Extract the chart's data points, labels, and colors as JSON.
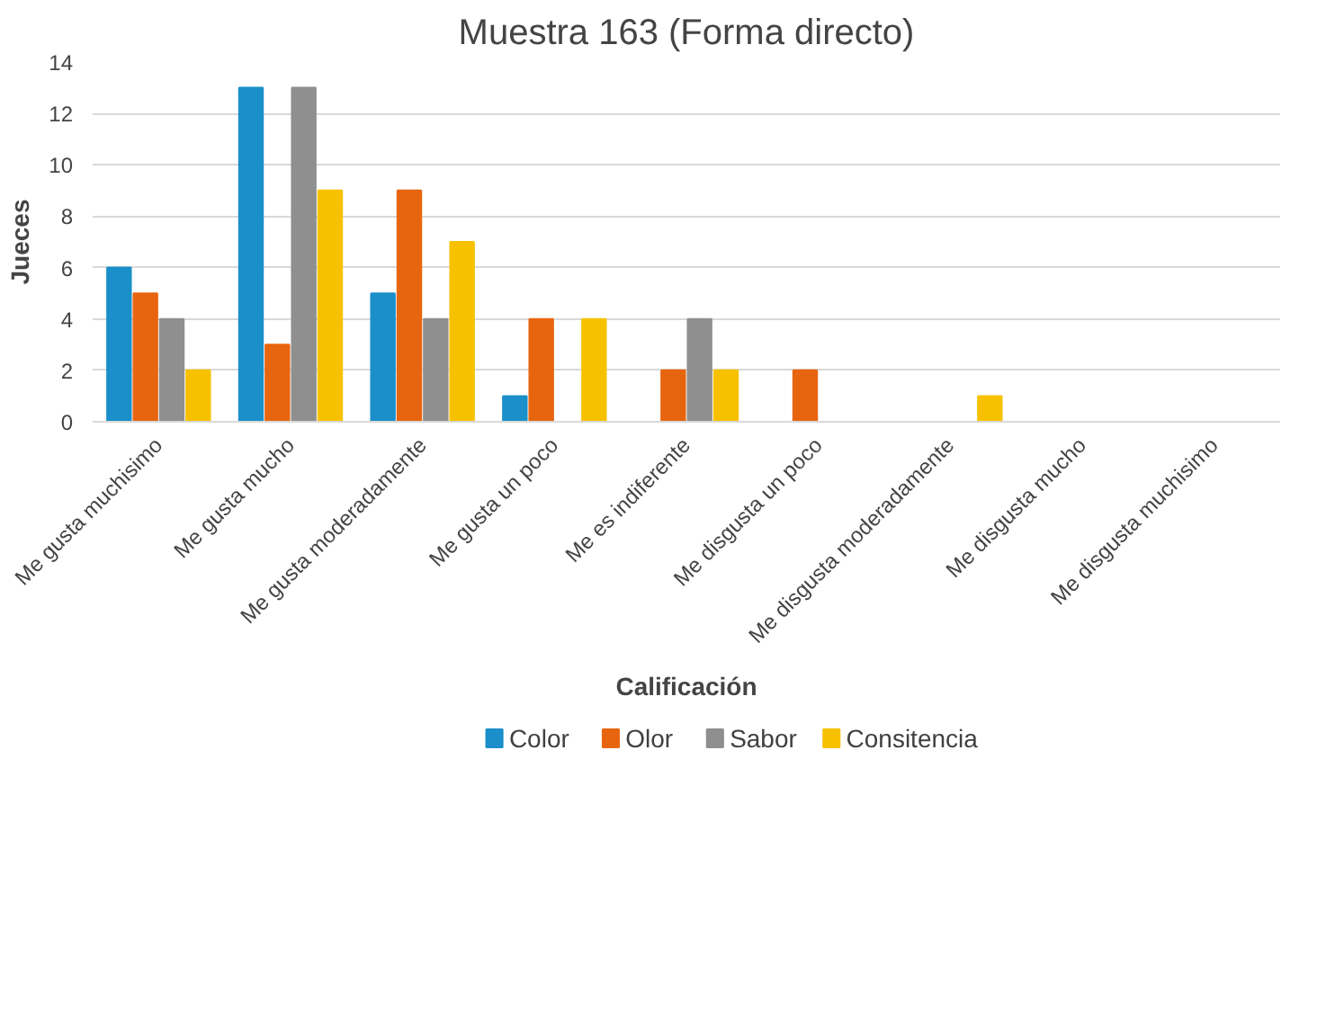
{
  "chart_data": {
    "type": "bar",
    "title": "Muestra 163 (Forma directo)",
    "xlabel": "Calificación",
    "ylabel": "Jueces",
    "categories": [
      "Me gusta muchisimo",
      "Me gusta mucho",
      "Me gusta moderadamente",
      "Me gusta un poco",
      "Me es indiferente",
      "Me disgusta un poco",
      "Me disgusta moderadamente",
      "Me disgusta mucho",
      "Me disgusta muchisimo"
    ],
    "series": [
      {
        "name": "Color",
        "color": "#1a8fc9",
        "values": [
          6,
          13,
          5,
          1,
          0,
          0,
          0,
          0,
          0
        ]
      },
      {
        "name": "Olor",
        "color": "#e8650f",
        "values": [
          5,
          3,
          9,
          4,
          2,
          2,
          0,
          0,
          0
        ]
      },
      {
        "name": "Sabor",
        "color": "#8f8f8f",
        "values": [
          4,
          13,
          4,
          0,
          4,
          0,
          0,
          0,
          0
        ]
      },
      {
        "name": "Consitencia",
        "color": "#f7c100",
        "values": [
          2,
          9,
          7,
          4,
          2,
          0,
          1,
          0,
          0
        ]
      }
    ],
    "ylim": [
      0,
      14
    ],
    "yticks": [
      0,
      2,
      4,
      6,
      8,
      10,
      12,
      14
    ],
    "grid": "y",
    "legend": "bottom"
  }
}
